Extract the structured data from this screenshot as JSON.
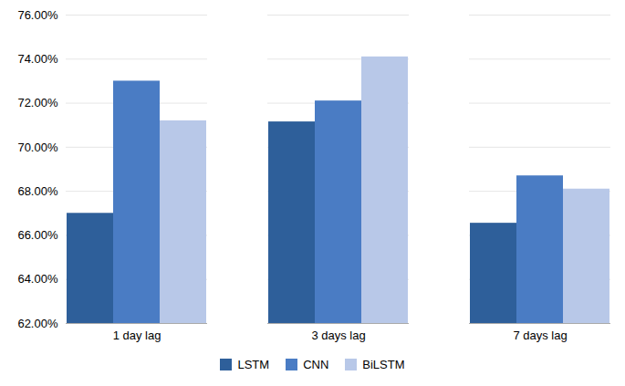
{
  "chart_data": {
    "type": "bar",
    "categories": [
      "1 day lag",
      "3 days lag",
      "7 days lag"
    ],
    "series": [
      {
        "name": "LSTM",
        "color": "#2E5F9A",
        "values": [
          0.67,
          0.7115,
          0.6655
        ]
      },
      {
        "name": "CNN",
        "color": "#4A7CC4",
        "values": [
          0.73,
          0.721,
          0.687
        ]
      },
      {
        "name": "BiLSTM",
        "color": "#B8C8E8",
        "values": [
          0.712,
          0.741,
          0.681
        ]
      }
    ],
    "ylim": [
      0.62,
      0.76
    ],
    "yticks": [
      {
        "value": 0.62,
        "label": "62.00%"
      },
      {
        "value": 0.64,
        "label": "64.00%"
      },
      {
        "value": 0.66,
        "label": "66.00%"
      },
      {
        "value": 0.68,
        "label": "68.00%"
      },
      {
        "value": 0.7,
        "label": "70.00%"
      },
      {
        "value": 0.72,
        "label": "72.00%"
      },
      {
        "value": 0.74,
        "label": "74.00%"
      },
      {
        "value": 0.76,
        "label": "76.00%"
      }
    ],
    "grid": true,
    "legend": "bottom"
  }
}
